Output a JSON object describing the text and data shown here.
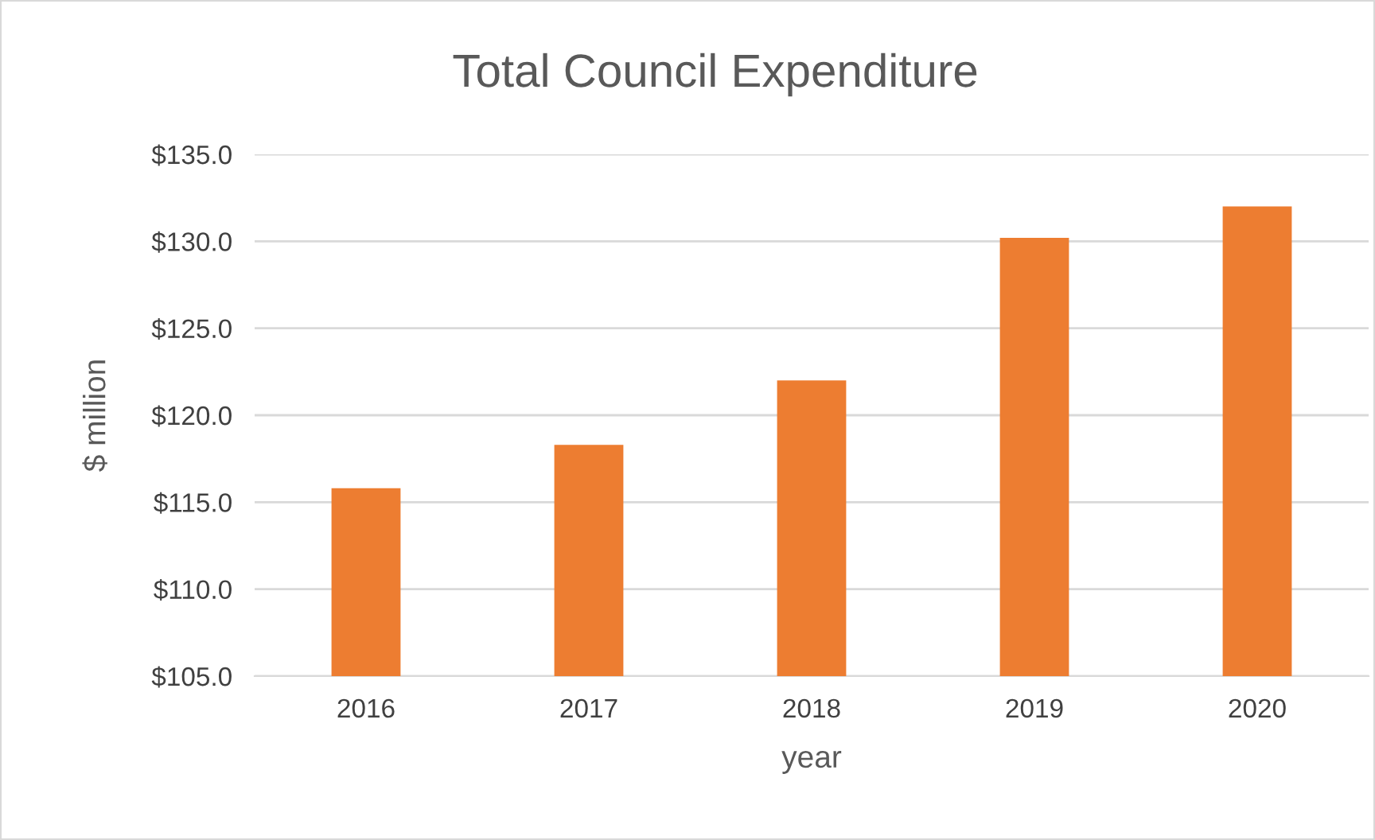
{
  "chart_data": {
    "type": "bar",
    "title": "Total Council Expenditure",
    "xlabel": "year",
    "ylabel": "$ million",
    "categories": [
      "2016",
      "2017",
      "2018",
      "2019",
      "2020"
    ],
    "values": [
      115.8,
      118.3,
      122.0,
      130.2,
      132.0
    ],
    "color": "#ed7d31",
    "ylim": [
      105,
      135
    ],
    "yticks": [
      {
        "value": 105,
        "label": "$105.0"
      },
      {
        "value": 110,
        "label": "$110.0"
      },
      {
        "value": 115,
        "label": "$115.0"
      },
      {
        "value": 120,
        "label": "$120.0"
      },
      {
        "value": 125,
        "label": "$125.0"
      },
      {
        "value": 130,
        "label": "$130.0"
      },
      {
        "value": 135,
        "label": "$135.0"
      }
    ],
    "grid": "y",
    "legend": false
  }
}
